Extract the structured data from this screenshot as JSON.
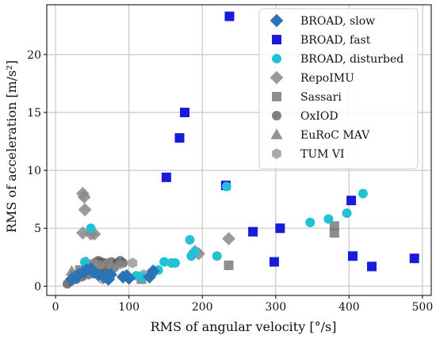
{
  "chart_data": {
    "type": "scatter",
    "xlabel": "RMS of angular velocity [°/s]",
    "ylabel": "RMS of acceleration [m/s²]",
    "xlim": [
      -12,
      512
    ],
    "ylim": [
      -0.8,
      24.3
    ],
    "xticks": [
      0,
      100,
      200,
      300,
      400,
      500
    ],
    "yticks": [
      0,
      5,
      10,
      15,
      20
    ],
    "grid": true,
    "legend_position": "top-right",
    "series": [
      {
        "name": "BROAD, slow",
        "marker": "diamond",
        "color": "#2a73b5",
        "opacity": 1,
        "points": [
          [
            22,
            0.6
          ],
          [
            28,
            0.8
          ],
          [
            32,
            1.0
          ],
          [
            38,
            1.2
          ],
          [
            42,
            1.4
          ],
          [
            48,
            1.5
          ],
          [
            52,
            1.2
          ],
          [
            58,
            1.0
          ],
          [
            66,
            0.8
          ],
          [
            72,
            0.6
          ],
          [
            75,
            1.0
          ],
          [
            92,
            0.8
          ],
          [
            97,
            0.9
          ],
          [
            100,
            0.7
          ],
          [
            128,
            0.8
          ],
          [
            133,
            1.3
          ]
        ]
      },
      {
        "name": "BROAD, fast",
        "marker": "square",
        "color": "#1a1adb",
        "opacity": 1,
        "points": [
          [
            237,
            23.3
          ],
          [
            176,
            15.0
          ],
          [
            169,
            12.8
          ],
          [
            151,
            9.4
          ],
          [
            232,
            8.7
          ],
          [
            269,
            4.7
          ],
          [
            306,
            5.0
          ],
          [
            298,
            2.1
          ],
          [
            403,
            7.4
          ],
          [
            405,
            2.6
          ],
          [
            431,
            1.7
          ],
          [
            489,
            2.4
          ]
        ]
      },
      {
        "name": "BROAD, disturbed",
        "marker": "circle",
        "color": "#23c1d4",
        "opacity": 1,
        "points": [
          [
            233,
            8.6
          ],
          [
            419,
            8.0
          ],
          [
            397,
            6.3
          ],
          [
            372,
            5.8
          ],
          [
            347,
            5.5
          ],
          [
            183,
            4.0
          ],
          [
            48,
            5.0
          ],
          [
            40,
            2.1
          ],
          [
            148,
            2.1
          ],
          [
            158,
            2.0
          ],
          [
            163,
            2.0
          ],
          [
            140,
            1.4
          ],
          [
            133,
            1.2
          ],
          [
            220,
            2.6
          ],
          [
            190,
            3.0
          ],
          [
            185,
            2.6
          ],
          [
            118,
            0.8
          ],
          [
            110,
            0.9
          ],
          [
            67,
            0.8
          ]
        ]
      },
      {
        "name": "RepoIMU",
        "marker": "diamond",
        "color": "#888888",
        "opacity": 0.85,
        "points": [
          [
            37,
            8.0
          ],
          [
            39,
            7.7
          ],
          [
            40,
            6.6
          ],
          [
            37,
            4.6
          ],
          [
            48,
            4.5
          ],
          [
            53,
            4.5
          ],
          [
            236,
            4.1
          ],
          [
            195,
            2.8
          ],
          [
            190,
            3.0
          ],
          [
            42,
            2.0
          ],
          [
            55,
            1.7
          ]
        ]
      },
      {
        "name": "Sassari",
        "marker": "square",
        "color": "#7a7a7a",
        "opacity": 0.85,
        "points": [
          [
            380,
            5.2
          ],
          [
            380,
            4.6
          ],
          [
            236,
            1.8
          ],
          [
            117,
            0.6
          ],
          [
            27,
            0.9
          ],
          [
            33,
            1.4
          ]
        ]
      },
      {
        "name": "OxIOD",
        "marker": "circle",
        "color": "#555555",
        "opacity": 0.75,
        "points": [
          [
            50,
            1.5
          ],
          [
            55,
            2.0
          ],
          [
            58,
            2.2
          ],
          [
            62,
            2.1
          ],
          [
            65,
            1.8
          ],
          [
            68,
            2.0
          ],
          [
            72,
            1.7
          ],
          [
            76,
            2.1
          ],
          [
            80,
            1.6
          ],
          [
            84,
            2.0
          ],
          [
            88,
            2.2
          ],
          [
            92,
            2.0
          ],
          [
            60,
            1.2
          ],
          [
            66,
            1.3
          ],
          [
            74,
            1.1
          ],
          [
            45,
            1.0
          ],
          [
            35,
            0.8
          ],
          [
            28,
            0.6
          ],
          [
            20,
            0.4
          ],
          [
            16,
            0.2
          ]
        ]
      },
      {
        "name": "EuRoC MAV",
        "marker": "triangle",
        "color": "#777777",
        "opacity": 0.8,
        "points": [
          [
            18,
            0.5
          ],
          [
            22,
            1.3
          ],
          [
            26,
            0.9
          ],
          [
            30,
            1.1
          ],
          [
            24,
            0.6
          ],
          [
            34,
            0.9
          ]
        ]
      },
      {
        "name": "TUM VI",
        "marker": "hexagon",
        "color": "#8c8c8c",
        "opacity": 0.75,
        "points": [
          [
            44,
            1.9
          ],
          [
            52,
            2.0
          ],
          [
            60,
            1.8
          ],
          [
            70,
            1.9
          ],
          [
            78,
            1.6
          ],
          [
            88,
            1.9
          ],
          [
            105,
            2.0
          ],
          [
            120,
            1.0
          ],
          [
            64,
            0.6
          ],
          [
            34,
            0.9
          ]
        ]
      }
    ]
  }
}
